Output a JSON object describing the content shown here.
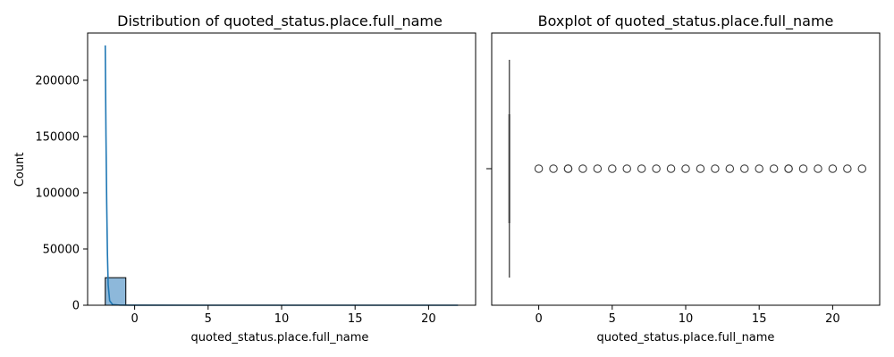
{
  "chart_data": [
    {
      "type": "histogram",
      "title": "Distribution of quoted_status.place.full_name",
      "xlabel": "quoted_status.place.full_name",
      "ylabel": "Count",
      "xlim": [
        -3.2,
        23.2
      ],
      "ylim": [
        0,
        242000
      ],
      "xticks": [
        0,
        5,
        10,
        15,
        20
      ],
      "yticks": [
        0,
        50000,
        100000,
        150000,
        200000
      ],
      "bars": [
        {
          "x0": -2.0,
          "x1": -0.6,
          "count": 24500
        },
        {
          "x0": -0.6,
          "x1": 22.0,
          "count": 0
        }
      ],
      "kde_curve": [
        {
          "x": -2.0,
          "y": 231000
        },
        {
          "x": -1.95,
          "y": 150000
        },
        {
          "x": -1.9,
          "y": 90000
        },
        {
          "x": -1.85,
          "y": 45000
        },
        {
          "x": -1.8,
          "y": 18000
        },
        {
          "x": -1.7,
          "y": 4000
        },
        {
          "x": -1.5,
          "y": 600
        },
        {
          "x": -1.0,
          "y": 100
        },
        {
          "x": 0,
          "y": 20
        },
        {
          "x": 5,
          "y": 10
        },
        {
          "x": 10,
          "y": 10
        },
        {
          "x": 15,
          "y": 10
        },
        {
          "x": 20,
          "y": 10
        },
        {
          "x": 22,
          "y": 10
        }
      ],
      "colors": {
        "bar_fill": "#8db8da",
        "bar_edge": "#000000",
        "kde_line": "#1f77b4"
      }
    },
    {
      "type": "boxplot",
      "title": "Boxplot of quoted_status.place.full_name",
      "xlabel": "quoted_status.place.full_name",
      "xlim": [
        -3.2,
        23.2
      ],
      "xticks": [
        0,
        5,
        10,
        15,
        20
      ],
      "box": {
        "min": -2,
        "q1": -2,
        "median": -2,
        "q3": -2,
        "max": -2
      },
      "outliers": [
        0,
        1,
        2,
        2,
        3,
        4,
        5,
        6,
        7,
        8,
        9,
        10,
        11,
        12,
        13,
        14,
        15,
        16,
        17,
        17,
        18,
        19,
        20,
        21,
        22
      ],
      "colors": {
        "box_line": "#3f3f3f",
        "whisker_line": "#555555",
        "outlier_edge": "#3f3f3f"
      }
    }
  ]
}
